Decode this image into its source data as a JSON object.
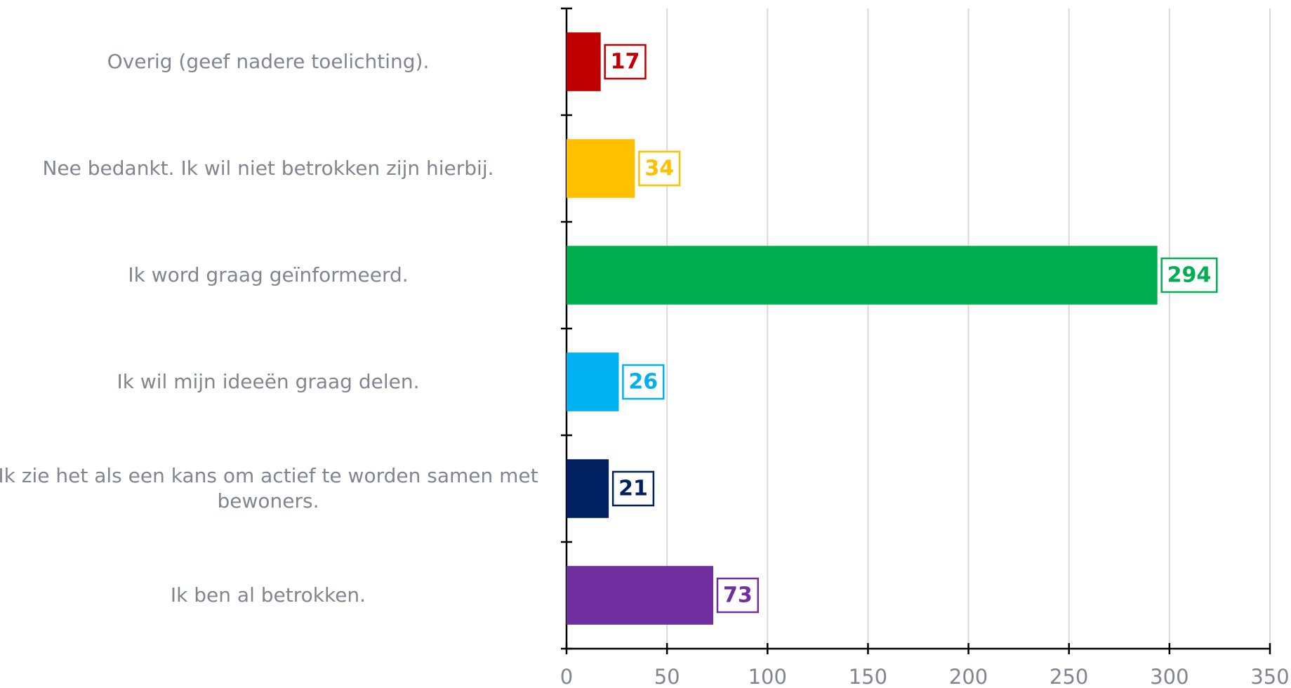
{
  "chart_data": {
    "type": "bar",
    "orientation": "horizontal",
    "categories": [
      "Overig (geef nadere toelichting).",
      "Nee bedankt. Ik wil niet betrokken zijn hierbij.",
      "Ik word graag geïnformeerd.",
      "Ik wil mijn ideeën graag delen.",
      "Ik zie het als een kans om actief te worden samen met bewoners.",
      "Ik ben al betrokken."
    ],
    "values": [
      17,
      34,
      294,
      26,
      21,
      73
    ],
    "colors": [
      "#c00000",
      "#ffc000",
      "#00b050",
      "#00b0f0",
      "#002060",
      "#7030a0"
    ],
    "xlim": [
      0,
      350
    ],
    "xticks": [
      0,
      50,
      100,
      150,
      200,
      250,
      300,
      350
    ],
    "grid": true
  }
}
